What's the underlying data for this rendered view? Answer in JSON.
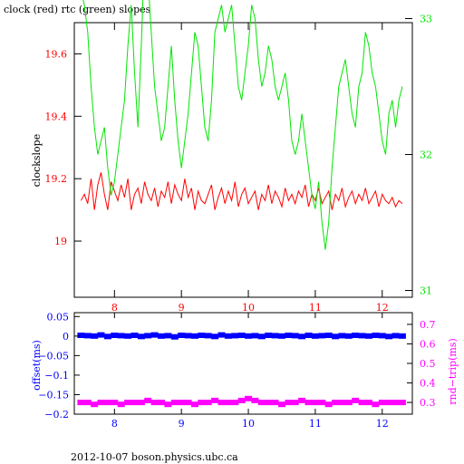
{
  "title": "clock (red) rtc (green) slopes",
  "footer": "2012-10-07  boson.physics.ubc.ca",
  "colors": {
    "clock": "#ff0000",
    "rtc": "#00e600",
    "offset": "#0000ff",
    "roundtrip": "#ff00ff",
    "frame": "#000000"
  },
  "chart_data": [
    {
      "type": "line",
      "title": "clock (red) rtc (green) slopes",
      "ylabel": "clockslope",
      "xlim": [
        7.4,
        12.45
      ],
      "ylim": [
        18.82,
        19.7
      ],
      "y2lim": [
        30.95,
        32.97
      ],
      "xticks": [
        "8",
        "9",
        "10",
        "11",
        "12"
      ],
      "yticks": [
        "19",
        "19.2",
        "19.4",
        "19.6"
      ],
      "y2ticks": [
        "31",
        "32",
        "33"
      ],
      "series": [
        {
          "name": "clock",
          "axis": "left",
          "x": [
            7.5,
            7.55,
            7.6,
            7.65,
            7.7,
            7.75,
            7.8,
            7.85,
            7.9,
            7.95,
            8.0,
            8.05,
            8.1,
            8.15,
            8.2,
            8.25,
            8.3,
            8.35,
            8.4,
            8.45,
            8.5,
            8.55,
            8.6,
            8.65,
            8.7,
            8.75,
            8.8,
            8.85,
            8.9,
            8.95,
            9.0,
            9.05,
            9.1,
            9.15,
            9.2,
            9.25,
            9.3,
            9.35,
            9.4,
            9.45,
            9.5,
            9.55,
            9.6,
            9.65,
            9.7,
            9.75,
            9.8,
            9.85,
            9.9,
            9.95,
            10.0,
            10.05,
            10.1,
            10.15,
            10.2,
            10.25,
            10.3,
            10.35,
            10.4,
            10.45,
            10.5,
            10.55,
            10.6,
            10.65,
            10.7,
            10.75,
            10.8,
            10.85,
            10.9,
            10.95,
            11.0,
            11.05,
            11.1,
            11.15,
            11.2,
            11.25,
            11.3,
            11.35,
            11.4,
            11.45,
            11.5,
            11.55,
            11.6,
            11.65,
            11.7,
            11.75,
            11.8,
            11.85,
            11.9,
            11.95,
            12.0,
            12.05,
            12.1,
            12.15,
            12.2,
            12.25,
            12.3
          ],
          "values": [
            19.13,
            19.15,
            19.12,
            19.2,
            19.1,
            19.18,
            19.22,
            19.15,
            19.1,
            19.19,
            19.16,
            19.13,
            19.18,
            19.14,
            19.2,
            19.1,
            19.15,
            19.17,
            19.12,
            19.19,
            19.15,
            19.13,
            19.17,
            19.11,
            19.16,
            19.14,
            19.19,
            19.12,
            19.18,
            19.15,
            19.13,
            19.2,
            19.14,
            19.17,
            19.1,
            19.16,
            19.13,
            19.12,
            19.15,
            19.18,
            19.1,
            19.14,
            19.17,
            19.12,
            19.16,
            19.13,
            19.19,
            19.11,
            19.15,
            19.17,
            19.12,
            19.14,
            19.16,
            19.1,
            19.15,
            19.13,
            19.18,
            19.12,
            19.16,
            19.14,
            19.11,
            19.17,
            19.13,
            19.15,
            19.12,
            19.16,
            19.14,
            19.18,
            19.11,
            19.15,
            19.13,
            19.17,
            19.12,
            19.14,
            19.16,
            19.1,
            19.15,
            19.13,
            19.17,
            19.11,
            19.14,
            19.16,
            19.12,
            19.15,
            19.13,
            19.17,
            19.12,
            19.14,
            19.16,
            19.11,
            19.15,
            19.13,
            19.12,
            19.14,
            19.11,
            19.13,
            19.12
          ]
        },
        {
          "name": "rtc",
          "axis": "right",
          "x": [
            7.5,
            7.55,
            7.6,
            7.65,
            7.7,
            7.75,
            7.8,
            7.85,
            7.9,
            7.95,
            8.0,
            8.05,
            8.1,
            8.15,
            8.2,
            8.25,
            8.3,
            8.35,
            8.4,
            8.45,
            8.5,
            8.55,
            8.6,
            8.65,
            8.7,
            8.75,
            8.8,
            8.85,
            8.9,
            8.95,
            9.0,
            9.05,
            9.1,
            9.15,
            9.2,
            9.25,
            9.3,
            9.35,
            9.4,
            9.45,
            9.5,
            9.55,
            9.6,
            9.65,
            9.7,
            9.75,
            9.8,
            9.85,
            9.9,
            9.95,
            10.0,
            10.05,
            10.1,
            10.15,
            10.2,
            10.25,
            10.3,
            10.35,
            10.4,
            10.45,
            10.5,
            10.55,
            10.6,
            10.65,
            10.7,
            10.75,
            10.8,
            10.85,
            10.9,
            10.95,
            11.0,
            11.05,
            11.1,
            11.15,
            11.2,
            11.25,
            11.3,
            11.35,
            11.4,
            11.45,
            11.5,
            11.55,
            11.6,
            11.65,
            11.7,
            11.75,
            11.8,
            11.85,
            11.9,
            11.95,
            12.0,
            12.05,
            12.1,
            12.15,
            12.2,
            12.25,
            12.3
          ],
          "values": [
            33.2,
            33.1,
            32.9,
            32.5,
            32.2,
            32.0,
            32.1,
            32.2,
            31.9,
            31.7,
            31.8,
            32.0,
            32.2,
            32.4,
            32.8,
            33.1,
            32.6,
            32.2,
            32.8,
            33.5,
            33.3,
            32.9,
            32.5,
            32.3,
            32.1,
            32.2,
            32.5,
            32.8,
            32.4,
            32.1,
            31.9,
            32.1,
            32.3,
            32.6,
            32.9,
            32.8,
            32.5,
            32.2,
            32.1,
            32.4,
            32.9,
            33.0,
            33.1,
            32.9,
            33.0,
            33.1,
            32.8,
            32.5,
            32.4,
            32.6,
            32.8,
            33.1,
            33.0,
            32.7,
            32.5,
            32.6,
            32.8,
            32.7,
            32.5,
            32.4,
            32.5,
            32.6,
            32.4,
            32.1,
            32.0,
            32.1,
            32.3,
            32.1,
            31.9,
            31.7,
            31.6,
            31.8,
            31.5,
            31.3,
            31.5,
            31.9,
            32.2,
            32.5,
            32.6,
            32.7,
            32.5,
            32.3,
            32.2,
            32.5,
            32.6,
            32.9,
            32.8,
            32.6,
            32.5,
            32.3,
            32.1,
            32.0,
            32.3,
            32.4,
            32.2,
            32.4,
            32.5
          ]
        }
      ]
    },
    {
      "type": "scatter",
      "ylabel": "offset(ms)",
      "y2label": "rnd−trip(ms)",
      "xlim": [
        7.4,
        12.45
      ],
      "ylim": [
        -0.2,
        0.06
      ],
      "y2lim": [
        0.24,
        0.76
      ],
      "xticks": [
        "8",
        "9",
        "10",
        "11",
        "12"
      ],
      "yticks": [
        "0.05",
        "0",
        "−0.05",
        "−0.1",
        "−0.15",
        "−0.2"
      ],
      "y2ticks": [
        "0.3",
        "0.4",
        "0.5",
        "0.6",
        "0.7"
      ],
      "series": [
        {
          "name": "offset",
          "axis": "left",
          "x": [
            7.5,
            7.6,
            7.7,
            7.8,
            7.9,
            8.0,
            8.1,
            8.2,
            8.3,
            8.4,
            8.5,
            8.6,
            8.7,
            8.8,
            8.9,
            9.0,
            9.1,
            9.2,
            9.3,
            9.4,
            9.5,
            9.6,
            9.7,
            9.8,
            9.9,
            10.0,
            10.1,
            10.2,
            10.3,
            10.4,
            10.5,
            10.6,
            10.7,
            10.8,
            10.9,
            11.0,
            11.1,
            11.2,
            11.3,
            11.4,
            11.5,
            11.6,
            11.7,
            11.8,
            11.9,
            12.0,
            12.1,
            12.2,
            12.3
          ],
          "values": [
            0.002,
            0.001,
            0.0,
            0.003,
            -0.001,
            0.002,
            0.001,
            0.0,
            0.002,
            -0.001,
            0.001,
            0.003,
            0.0,
            0.001,
            -0.002,
            0.002,
            0.001,
            0.0,
            0.002,
            0.001,
            -0.001,
            0.003,
            0.0,
            0.001,
            0.002,
            0.0,
            0.001,
            -0.001,
            0.002,
            0.001,
            0.0,
            0.002,
            0.001,
            -0.001,
            0.002,
            0.0,
            0.001,
            0.002,
            -0.001,
            0.001,
            0.0,
            0.002,
            0.001,
            0.0,
            0.002,
            0.001,
            -0.001,
            0.001,
            0.0
          ]
        },
        {
          "name": "roundtrip",
          "axis": "right",
          "x": [
            7.5,
            7.6,
            7.7,
            7.8,
            7.9,
            8.0,
            8.1,
            8.2,
            8.3,
            8.4,
            8.5,
            8.6,
            8.7,
            8.8,
            8.9,
            9.0,
            9.1,
            9.2,
            9.3,
            9.4,
            9.5,
            9.6,
            9.7,
            9.8,
            9.9,
            10.0,
            10.1,
            10.2,
            10.3,
            10.4,
            10.5,
            10.6,
            10.7,
            10.8,
            10.9,
            11.0,
            11.1,
            11.2,
            11.3,
            11.4,
            11.5,
            11.6,
            11.7,
            11.8,
            11.9,
            12.0,
            12.1,
            12.2,
            12.3
          ],
          "values": [
            0.3,
            0.3,
            0.29,
            0.3,
            0.3,
            0.3,
            0.29,
            0.3,
            0.3,
            0.3,
            0.31,
            0.3,
            0.3,
            0.29,
            0.3,
            0.3,
            0.3,
            0.29,
            0.3,
            0.3,
            0.31,
            0.3,
            0.3,
            0.3,
            0.31,
            0.32,
            0.31,
            0.3,
            0.3,
            0.3,
            0.29,
            0.3,
            0.3,
            0.31,
            0.3,
            0.3,
            0.3,
            0.29,
            0.3,
            0.3,
            0.3,
            0.31,
            0.3,
            0.3,
            0.29,
            0.3,
            0.3,
            0.3,
            0.3
          ]
        }
      ]
    }
  ]
}
